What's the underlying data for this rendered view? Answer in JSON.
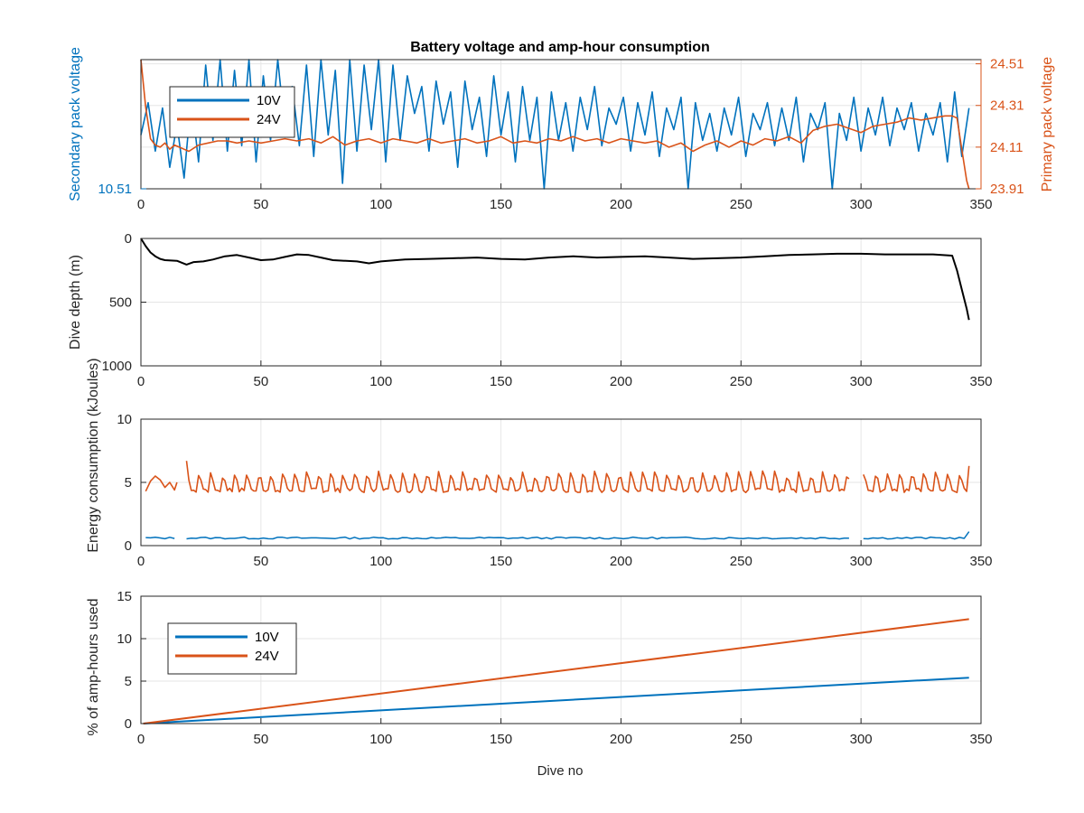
{
  "figure": {
    "title": "Battery voltage and amp-hour consumption",
    "xlabel": "Dive no",
    "colors": {
      "blue": "#0072BD",
      "orange": "#D95319",
      "black": "#000000",
      "grid": "#e6e6e6",
      "axis": "#262626"
    }
  },
  "chart_data": [
    {
      "type": "line",
      "title": "Battery voltage and amp-hour consumption",
      "xlabel": "",
      "ylabel_left": "Secondary pack voltage",
      "ylabel_right": "Primary pack voltage",
      "xlim": [
        0,
        350
      ],
      "xticks": [
        0,
        50,
        100,
        150,
        200,
        250,
        300,
        350
      ],
      "ylim_left": [
        10.51,
        10.75
      ],
      "yticks_left": [
        10.51
      ],
      "ylim_right": [
        23.91,
        24.53
      ],
      "yticks_right": [
        23.91,
        24.11,
        24.31,
        24.51
      ],
      "grid": true,
      "legend": {
        "placement": "top-left",
        "entries": [
          "10V",
          "24V"
        ]
      },
      "series": [
        {
          "name": "10V",
          "axis": "left",
          "color": "#0072BD",
          "x": [
            0,
            3,
            6,
            9,
            12,
            15,
            18,
            21,
            24,
            27,
            30,
            33,
            36,
            39,
            42,
            45,
            48,
            51,
            54,
            57,
            60,
            63,
            66,
            69,
            72,
            75,
            78,
            81,
            84,
            87,
            90,
            93,
            96,
            99,
            102,
            105,
            108,
            111,
            114,
            117,
            120,
            123,
            126,
            129,
            132,
            135,
            138,
            141,
            144,
            147,
            150,
            153,
            156,
            159,
            162,
            165,
            168,
            171,
            174,
            177,
            180,
            183,
            186,
            189,
            192,
            195,
            198,
            201,
            204,
            207,
            210,
            213,
            216,
            219,
            222,
            225,
            228,
            231,
            234,
            237,
            240,
            243,
            246,
            249,
            252,
            255,
            258,
            261,
            264,
            267,
            270,
            273,
            276,
            279,
            282,
            285,
            288,
            291,
            294,
            297,
            300,
            303,
            306,
            309,
            312,
            315,
            318,
            321,
            324,
            327,
            330,
            333,
            336,
            339,
            342,
            345
          ],
          "y": [
            10.61,
            10.67,
            10.58,
            10.66,
            10.55,
            10.63,
            10.53,
            10.68,
            10.56,
            10.74,
            10.6,
            10.75,
            10.58,
            10.73,
            10.59,
            10.75,
            10.56,
            10.72,
            10.6,
            10.75,
            10.62,
            10.7,
            10.59,
            10.74,
            10.57,
            10.75,
            10.61,
            10.73,
            10.52,
            10.75,
            10.58,
            10.74,
            10.62,
            10.75,
            10.56,
            10.74,
            10.6,
            10.72,
            10.65,
            10.7,
            10.58,
            10.71,
            10.63,
            10.69,
            10.55,
            10.71,
            10.62,
            10.68,
            10.57,
            10.72,
            10.61,
            10.69,
            10.56,
            10.7,
            10.6,
            10.68,
            10.51,
            10.69,
            10.6,
            10.67,
            10.58,
            10.68,
            10.62,
            10.7,
            10.59,
            10.66,
            10.63,
            10.68,
            10.58,
            10.67,
            10.61,
            10.69,
            10.57,
            10.66,
            10.62,
            10.68,
            10.51,
            10.67,
            10.6,
            10.65,
            10.58,
            10.66,
            10.61,
            10.68,
            10.57,
            10.65,
            10.62,
            10.67,
            10.59,
            10.66,
            10.6,
            10.68,
            10.56,
            10.65,
            10.62,
            10.67,
            10.51,
            10.65,
            10.6,
            10.68,
            10.58,
            10.66,
            10.61,
            10.68,
            10.59,
            10.66,
            10.62,
            10.67,
            10.58,
            10.65,
            10.61,
            10.67,
            10.56,
            10.69,
            10.57,
            10.66
          ]
        },
        {
          "name": "24V",
          "axis": "right",
          "color": "#D95319",
          "x": [
            0,
            2,
            4,
            6,
            8,
            10,
            12,
            14,
            16,
            18,
            20,
            24,
            28,
            32,
            36,
            40,
            45,
            50,
            55,
            60,
            65,
            70,
            75,
            80,
            85,
            90,
            95,
            100,
            105,
            110,
            115,
            120,
            125,
            130,
            135,
            140,
            145,
            150,
            155,
            160,
            165,
            170,
            175,
            180,
            185,
            190,
            195,
            200,
            205,
            210,
            215,
            220,
            225,
            230,
            235,
            240,
            245,
            250,
            255,
            260,
            265,
            270,
            275,
            280,
            285,
            290,
            295,
            300,
            305,
            310,
            315,
            320,
            325,
            330,
            335,
            338,
            340,
            342,
            344,
            345
          ],
          "y": [
            24.53,
            24.3,
            24.15,
            24.12,
            24.11,
            24.13,
            24.1,
            24.12,
            24.11,
            24.1,
            24.09,
            24.12,
            24.13,
            24.14,
            24.14,
            24.13,
            24.14,
            24.13,
            24.14,
            24.15,
            24.14,
            24.15,
            24.13,
            24.16,
            24.12,
            24.14,
            24.15,
            24.13,
            24.15,
            24.14,
            24.13,
            24.15,
            24.13,
            24.14,
            24.15,
            24.13,
            24.14,
            24.16,
            24.13,
            24.14,
            24.13,
            24.15,
            24.14,
            24.16,
            24.14,
            24.15,
            24.13,
            24.15,
            24.14,
            24.13,
            24.14,
            24.11,
            24.13,
            24.09,
            24.12,
            24.14,
            24.11,
            24.14,
            24.12,
            24.15,
            24.14,
            24.16,
            24.13,
            24.19,
            24.21,
            24.22,
            24.2,
            24.18,
            24.21,
            24.22,
            24.23,
            24.25,
            24.24,
            24.25,
            24.26,
            24.26,
            24.25,
            24.1,
            23.95,
            23.91
          ]
        }
      ]
    },
    {
      "type": "line",
      "title": "",
      "xlabel": "",
      "ylabel": "Dive depth (m)",
      "xlim": [
        0,
        350
      ],
      "xticks": [
        0,
        50,
        100,
        150,
        200,
        250,
        300,
        350
      ],
      "ylim": [
        0,
        1000
      ],
      "yticks": [
        0,
        500,
        1000
      ],
      "ydir": "reverse",
      "grid": true,
      "series": [
        {
          "color": "#000000",
          "x": [
            0,
            2,
            4,
            6,
            8,
            10,
            15,
            19,
            22,
            26,
            30,
            35,
            40,
            45,
            50,
            55,
            60,
            65,
            70,
            75,
            80,
            90,
            95,
            100,
            110,
            120,
            130,
            140,
            150,
            160,
            170,
            180,
            190,
            200,
            210,
            220,
            230,
            240,
            250,
            260,
            270,
            280,
            290,
            300,
            310,
            320,
            330,
            338,
            340,
            342,
            344,
            345
          ],
          "y": [
            0,
            60,
            110,
            140,
            160,
            170,
            175,
            205,
            185,
            180,
            165,
            140,
            130,
            150,
            170,
            165,
            145,
            125,
            130,
            150,
            170,
            180,
            195,
            180,
            165,
            160,
            155,
            150,
            160,
            165,
            150,
            140,
            150,
            145,
            140,
            150,
            160,
            155,
            150,
            140,
            130,
            125,
            120,
            120,
            125,
            125,
            125,
            135,
            250,
            400,
            550,
            640
          ]
        }
      ]
    },
    {
      "type": "line",
      "title": "",
      "xlabel": "",
      "ylabel": "Energy consumption (kJoules)",
      "xlim": [
        0,
        350
      ],
      "xticks": [
        0,
        50,
        100,
        150,
        200,
        250,
        300,
        350
      ],
      "ylim": [
        0,
        10
      ],
      "yticks": [
        0,
        5,
        10
      ],
      "grid": true,
      "series": [
        {
          "name": "24V",
          "color": "#D95319",
          "spikes_from": 20,
          "spike_period": 5,
          "spike_top": 5.9,
          "base": 4.2,
          "x": [
            2,
            4,
            6,
            8,
            10,
            12,
            14,
            15
          ],
          "y": [
            4.3,
            5.1,
            5.5,
            5.2,
            4.6,
            5.0,
            4.4,
            5.0
          ],
          "segments": [
            [
              2,
              15
            ],
            [
              19,
              295
            ],
            [
              301,
              345
            ]
          ],
          "endpoints": {
            "start": [
              19,
              6.7
            ],
            "tail": [
              345,
              6.3
            ]
          }
        },
        {
          "name": "10V",
          "color": "#0072BD",
          "segments": [
            [
              2,
              15
            ],
            [
              19,
              295
            ],
            [
              301,
              345
            ]
          ],
          "base": 0.6,
          "endpoints": {
            "tail": [
              345,
              1.1
            ]
          }
        }
      ]
    },
    {
      "type": "line",
      "title": "",
      "xlabel": "Dive no",
      "ylabel": "% of amp-hours used",
      "xlim": [
        0,
        350
      ],
      "xticks": [
        0,
        50,
        100,
        150,
        200,
        250,
        300,
        350
      ],
      "ylim": [
        0,
        15
      ],
      "yticks": [
        0,
        5,
        10,
        15
      ],
      "grid": true,
      "legend": {
        "placement": "top-left",
        "entries": [
          "10V",
          "24V"
        ]
      },
      "series": [
        {
          "name": "10V",
          "color": "#0072BD",
          "x": [
            1,
            345
          ],
          "y": [
            0,
            5.4
          ]
        },
        {
          "name": "24V",
          "color": "#D95319",
          "x": [
            1,
            345
          ],
          "y": [
            0,
            12.3
          ]
        }
      ]
    }
  ]
}
